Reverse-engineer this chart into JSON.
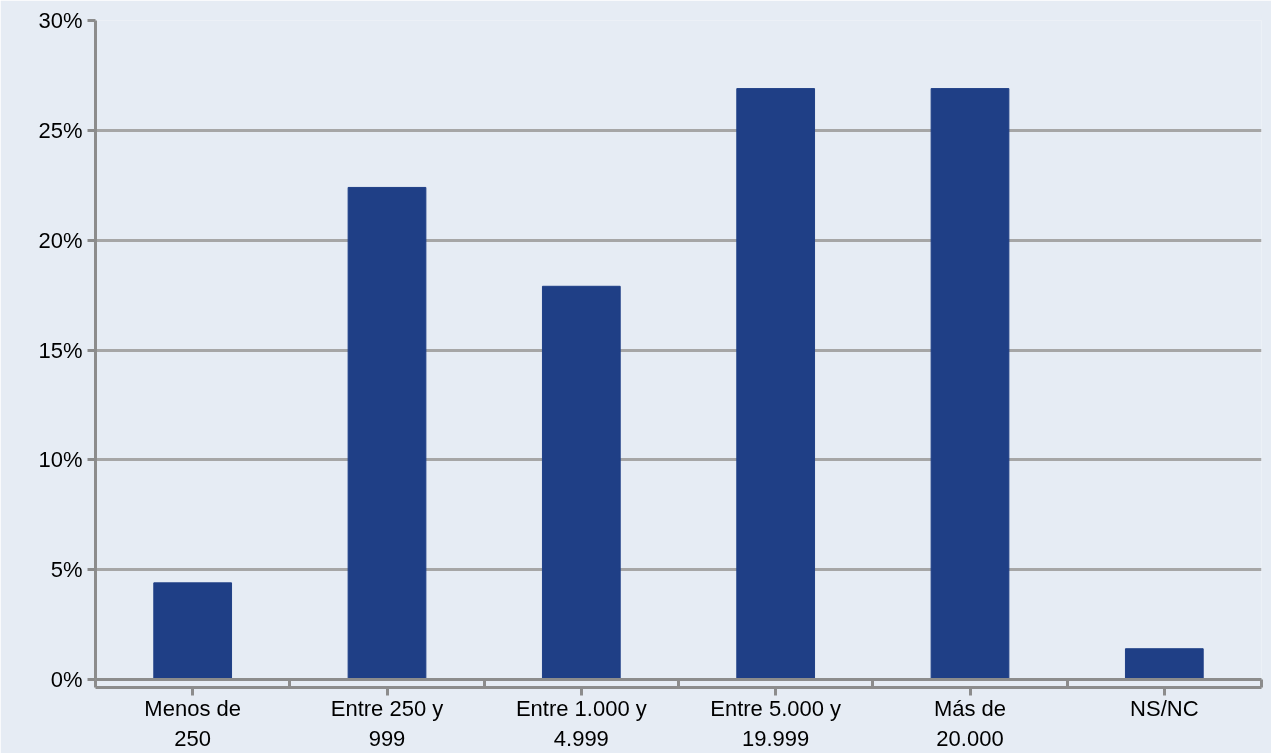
{
  "chart_data": {
    "type": "bar",
    "categories": [
      "Menos de 250",
      "Entre 250 y 999",
      "Entre 1.000 y 4.999",
      "Entre 5.000 y 19.999",
      "Más de 20.000",
      "NS/NC"
    ],
    "values": [
      4.4,
      22.4,
      17.9,
      26.9,
      26.9,
      1.4
    ],
    "color": "#1f3f86",
    "ylim": [
      0,
      30
    ],
    "yticks": [
      {
        "value": 0,
        "label": "0%"
      },
      {
        "value": 5,
        "label": "5%"
      },
      {
        "value": 10,
        "label": "10%"
      },
      {
        "value": 15,
        "label": "15%"
      },
      {
        "value": 20,
        "label": "20%"
      },
      {
        "value": 25,
        "label": "25%"
      },
      {
        "value": 30,
        "label": "30%"
      }
    ],
    "grid": "y"
  }
}
